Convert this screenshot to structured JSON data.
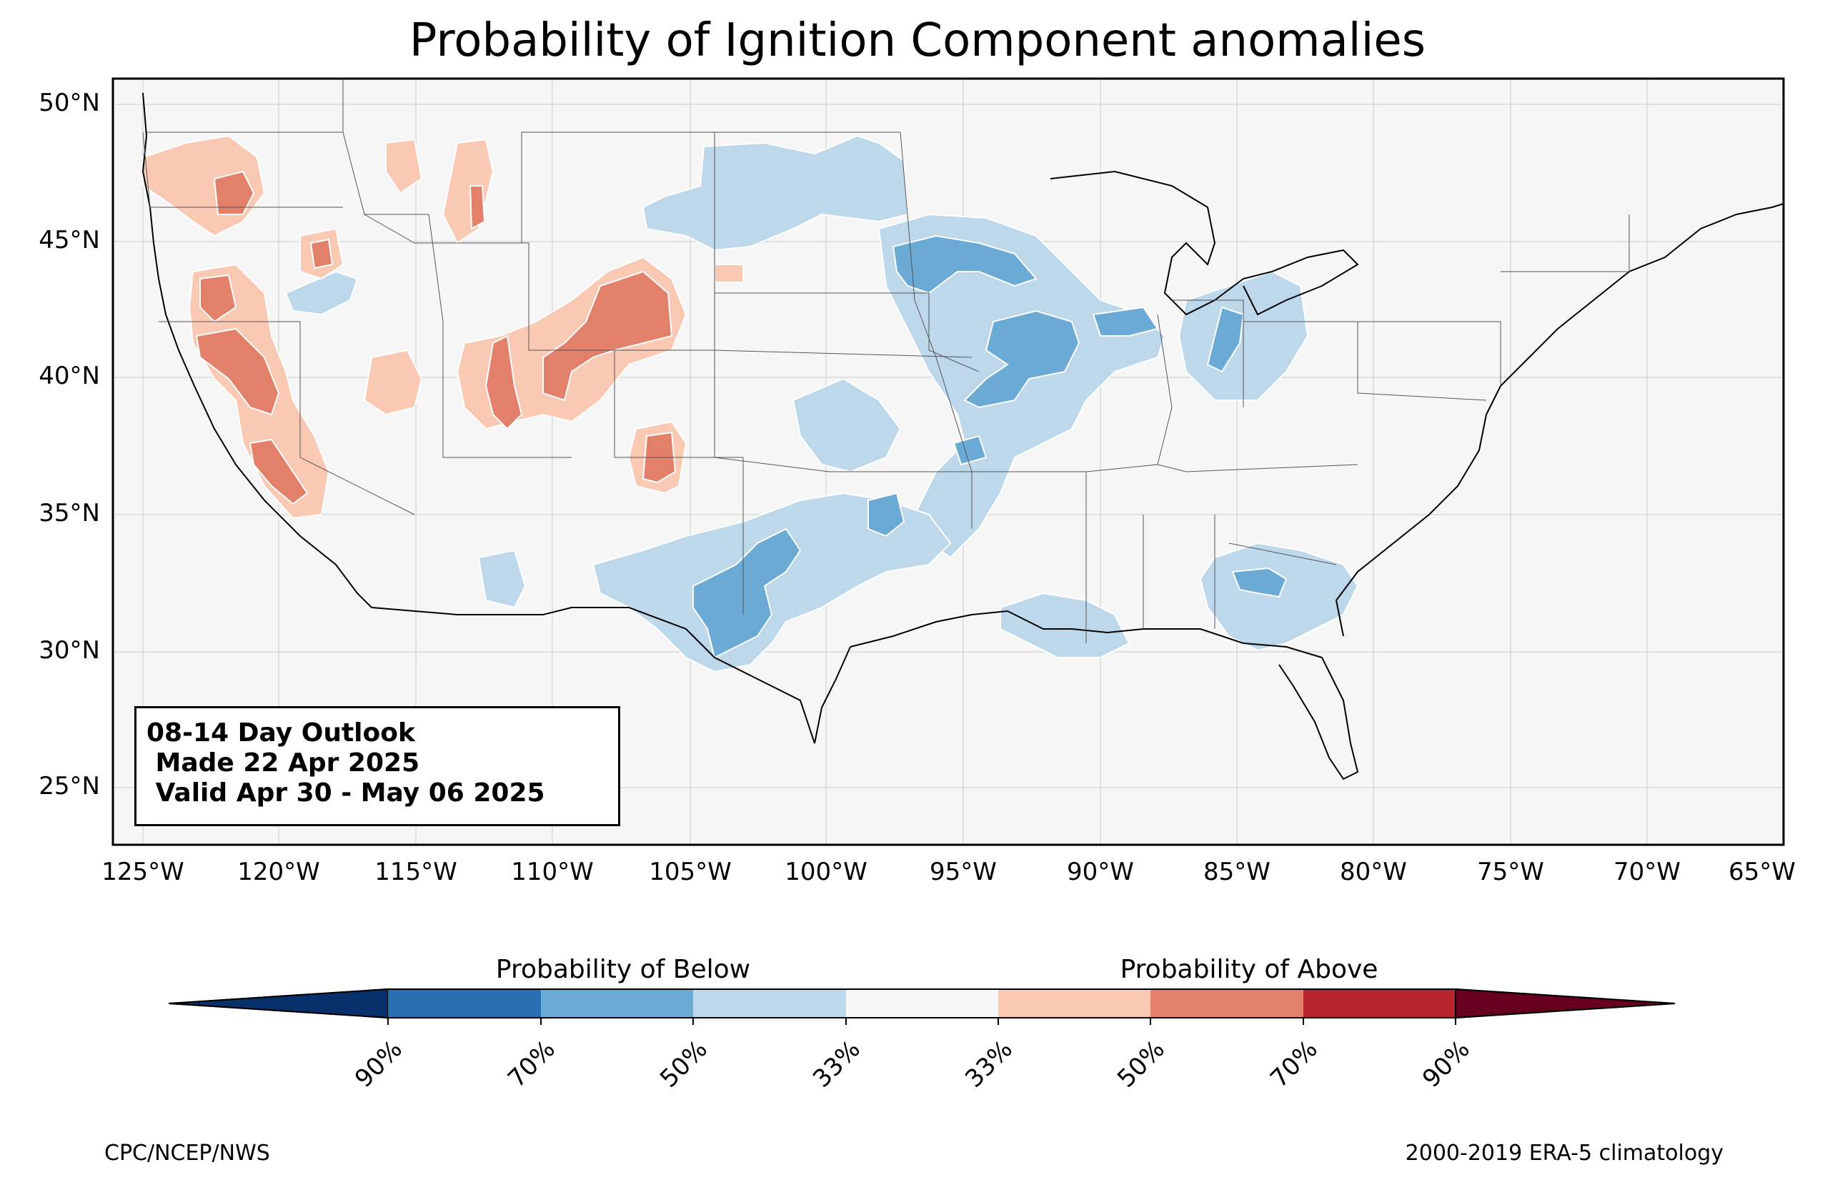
{
  "title": "Probability of Ignition Component anomalies",
  "map": {
    "lat_labels": [
      "50°N",
      "45°N",
      "40°N",
      "35°N",
      "30°N",
      "25°N"
    ],
    "lon_labels": [
      "125°W",
      "120°W",
      "115°W",
      "110°W",
      "105°W",
      "100°W",
      "95°W",
      "90°W",
      "85°W",
      "80°W",
      "75°W",
      "70°W",
      "65°W"
    ],
    "land_color": "#f5f6f5",
    "border_color": "#444444"
  },
  "outlook_box": {
    "line1": "08-14 Day Outlook",
    "line2": " Made 22 Apr 2025",
    "line3": " Valid Apr 30 - May 06 2025"
  },
  "colorbar": {
    "below_label": "Probability of Below",
    "above_label": "Probability of Above",
    "colors": [
      "#08306b",
      "#2a6fb4",
      "#6aaad4",
      "#bcd8ea",
      "#f7f7f7",
      "#f9c9b3",
      "#e2806a",
      "#b6252f",
      "#67001f"
    ],
    "ticks": [
      "90%",
      "70%",
      "50%",
      "33%",
      "33%",
      "50%",
      "70%",
      "90%"
    ]
  },
  "footer": {
    "left": "CPC/NCEP/NWS",
    "right": "2000-2019 ERA-5 climatology"
  }
}
